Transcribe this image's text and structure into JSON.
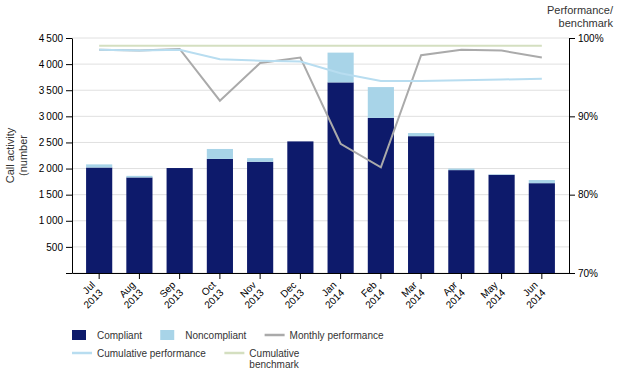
{
  "chart_data": {
    "type": "bar",
    "stacked": true,
    "grid": true,
    "legend": "bottom",
    "categories": [
      "Jul\n2013",
      "Aug\n2013",
      "Sep\n2013",
      "Oct\n2013",
      "Nov\n2013",
      "Dec\n2013",
      "Jan\n2014",
      "Feb\n2014",
      "Mar\n2014",
      "Apr\n2014",
      "May\n2014",
      "Jun\n2014"
    ],
    "ylabel": "Call activity\n(number",
    "y2label": "Performance/\nbenchmark",
    "ylim": [
      0,
      4500
    ],
    "yticks": [
      {
        "value": 0,
        "label": null
      },
      500,
      {
        "value": 1000,
        "label": "1 000"
      },
      {
        "value": 1500,
        "label": "1 500"
      },
      {
        "value": 2000,
        "label": "2 000"
      },
      {
        "value": 2500,
        "label": "2 500"
      },
      {
        "value": 3000,
        "label": "3 000"
      },
      {
        "value": 3500,
        "label": "3 500"
      },
      {
        "value": 4000,
        "label": "4 000"
      },
      {
        "value": 4500,
        "label": "4 500"
      }
    ],
    "y2lim": [
      70,
      100
    ],
    "y2ticks": [
      {
        "value": 70,
        "label": "70%"
      },
      {
        "value": 80,
        "label": "80%"
      },
      {
        "value": 90,
        "label": "90%"
      },
      {
        "value": 100,
        "label": "100%"
      }
    ],
    "series": [
      {
        "name": "Compliant",
        "type": "bar",
        "color": "#0d1a6b",
        "values": [
          2020,
          1830,
          2010,
          2185,
          2130,
          2520,
          3650,
          2970,
          2620,
          1970,
          1880,
          1720
        ]
      },
      {
        "name": "Noncompliant",
        "type": "bar",
        "color": "#a8d4e8",
        "values": [
          60,
          30,
          0,
          190,
          70,
          0,
          570,
          590,
          60,
          30,
          10,
          60
        ]
      },
      {
        "name": "Monthly performance",
        "type": "line",
        "axis": "y2",
        "color": "#aaaaaa",
        "values": [
          98.5,
          98.4,
          98.6,
          92.0,
          96.8,
          97.5,
          86.5,
          83.5,
          97.8,
          98.5,
          98.4,
          97.5
        ]
      },
      {
        "name": "Cumulative performance",
        "type": "line",
        "axis": "y2",
        "color": "#b8ddf0",
        "values": [
          98.5,
          98.4,
          98.5,
          97.3,
          97.1,
          97.0,
          95.5,
          94.5,
          94.5,
          94.6,
          94.7,
          94.8
        ]
      },
      {
        "name": "Cumulative\nbenchmark",
        "type": "line",
        "axis": "y2",
        "color": "#d4dfc0",
        "values": [
          99.0,
          99.0,
          99.0,
          99.0,
          99.0,
          99.0,
          99.0,
          99.0,
          99.0,
          99.0,
          99.0,
          99.0
        ]
      }
    ]
  }
}
